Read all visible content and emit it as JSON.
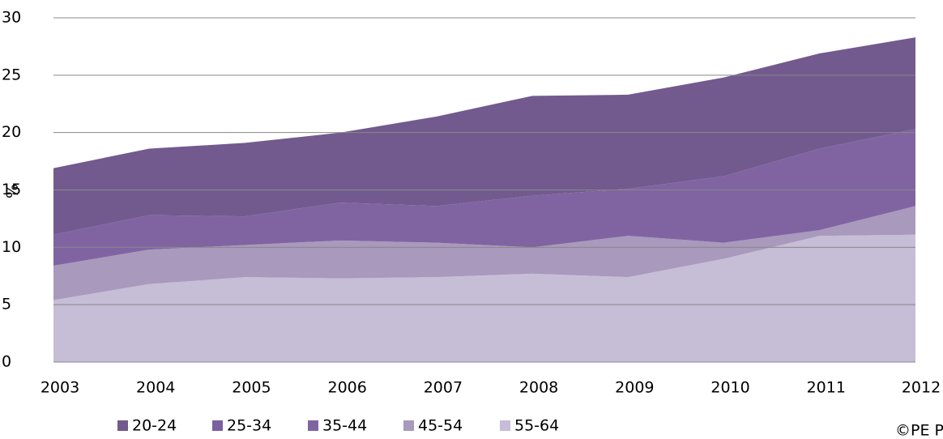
{
  "chart_data": {
    "type": "stacked_area",
    "y_label": "%",
    "categories": [
      "2003",
      "2004",
      "2005",
      "2006",
      "2007",
      "2008",
      "2009",
      "2010",
      "2011",
      "2012"
    ],
    "series": [
      {
        "name": "20-24",
        "color": "#725a8e",
        "values": [
          5.8,
          5.8,
          6.4,
          6.1,
          7.8,
          8.7,
          8.2,
          8.6,
          8.3,
          8.0
        ]
      },
      {
        "name": "25-34",
        "color": "#7b61a0",
        "values": [
          0,
          0,
          0,
          0,
          0,
          0,
          0,
          0,
          0,
          0
        ]
      },
      {
        "name": "35-44",
        "color": "#8064a2",
        "values": [
          2.7,
          3.0,
          2.5,
          3.3,
          3.2,
          4.5,
          4.1,
          5.8,
          7.1,
          6.7
        ]
      },
      {
        "name": "45-54",
        "color": "#a899bd",
        "values": [
          3.0,
          3.0,
          2.8,
          3.3,
          3.0,
          2.3,
          3.6,
          1.4,
          0.5,
          2.5
        ]
      },
      {
        "name": "55-64",
        "color": "#c6bdd6",
        "values": [
          5.4,
          6.8,
          7.4,
          7.3,
          7.4,
          7.7,
          7.4,
          9.0,
          11.0,
          11.1
        ]
      }
    ],
    "ylim": [
      0,
      30
    ],
    "yticks": [
      0,
      5,
      10,
      15,
      20,
      25,
      30
    ],
    "grid": true,
    "source": "©PE Pr"
  }
}
